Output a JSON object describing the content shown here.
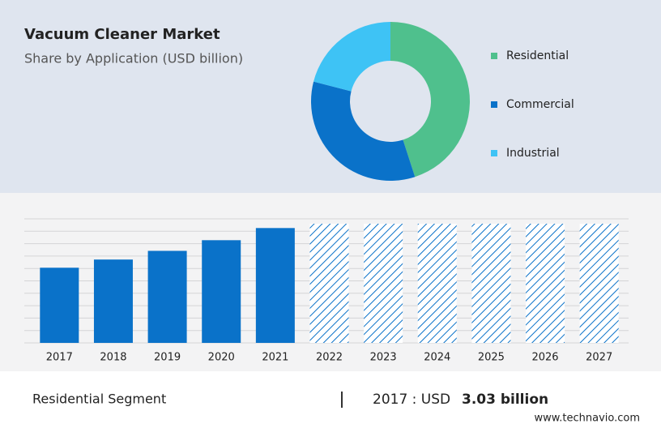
{
  "chart_data": [
    {
      "type": "donut",
      "title": "Vacuum Cleaner Market",
      "subtitle": "Share by Application (USD billion)",
      "categories": [
        "Residential",
        "Commercial",
        "Industrial"
      ],
      "values": [
        45,
        34,
        21
      ],
      "colors": [
        "#4fc08d",
        "#0a72c9",
        "#3ec3f5"
      ]
    },
    {
      "type": "bar",
      "categories": [
        "2017",
        "2018",
        "2019",
        "2020",
        "2021",
        "2022",
        "2023",
        "2024",
        "2025",
        "2026",
        "2027"
      ],
      "values": [
        3.03,
        3.36,
        3.71,
        4.14,
        4.63,
        null,
        null,
        null,
        null,
        null,
        null
      ],
      "color": "#0a72c9",
      "ylim": [
        0,
        5
      ],
      "yticks": [
        0.5,
        1,
        1.5,
        2,
        2.5,
        3,
        3.5,
        4,
        4.5,
        5
      ],
      "grid": true
    }
  ],
  "footer": {
    "segment": "Residential Segment",
    "prefix": "2017 : USD",
    "value": "3.03 billion",
    "source": "www.technavio.com"
  }
}
